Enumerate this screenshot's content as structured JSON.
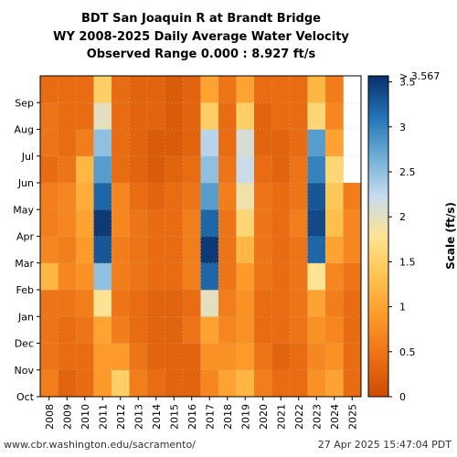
{
  "chart_data": {
    "type": "heatmap",
    "title_lines": [
      "BDT San Joaquin R at Brandt Bridge",
      "WY 2008-2025 Daily Average Water Velocity",
      "Observed Range 0.000 : 8.927 ft/s"
    ],
    "x_categories": [
      "2008",
      "2009",
      "2010",
      "2011",
      "2012",
      "2013",
      "2014",
      "2015",
      "2016",
      "2017",
      "2018",
      "2019",
      "2020",
      "2021",
      "2022",
      "2023",
      "2024",
      "2025"
    ],
    "y_categories": [
      "Oct",
      "Nov",
      "Dec",
      "Jan",
      "Feb",
      "Mar",
      "Apr",
      "May",
      "Jun",
      "Jul",
      "Aug",
      "Sep"
    ],
    "monthly_mean_velocity_ft_s": [
      [
        0.6,
        0.5,
        0.5,
        0.5,
        1.2,
        0.7,
        0.6,
        0.6,
        0.4,
        0.5,
        0.5,
        0.4
      ],
      [
        0.3,
        0.4,
        0.4,
        0.5,
        0.7,
        0.6,
        0.7,
        0.7,
        0.5,
        0.4,
        0.4,
        0.4
      ],
      [
        0.4,
        0.4,
        0.5,
        0.6,
        0.8,
        0.9,
        1.0,
        1.1,
        1.2,
        0.6,
        0.4,
        0.4
      ],
      [
        0.9,
        0.9,
        1.0,
        1.8,
        2.5,
        3.3,
        3.5,
        3.2,
        2.8,
        2.5,
        2.0,
        1.5
      ],
      [
        1.5,
        0.9,
        0.6,
        0.5,
        0.6,
        0.6,
        0.7,
        0.7,
        0.4,
        0.4,
        0.4,
        0.4
      ],
      [
        0.6,
        0.5,
        0.4,
        0.4,
        0.5,
        0.5,
        0.5,
        0.4,
        0.3,
        0.3,
        0.3,
        0.3
      ],
      [
        0.4,
        0.3,
        0.3,
        0.3,
        0.4,
        0.4,
        0.4,
        0.3,
        0.2,
        0.2,
        0.3,
        0.3
      ],
      [
        0.3,
        0.3,
        0.3,
        0.3,
        0.4,
        0.4,
        0.4,
        0.4,
        0.3,
        0.2,
        0.2,
        0.2
      ],
      [
        0.3,
        0.3,
        0.5,
        0.4,
        0.6,
        0.6,
        0.6,
        0.5,
        0.4,
        0.3,
        0.3,
        0.3
      ],
      [
        0.7,
        0.8,
        1.0,
        2.0,
        3.2,
        3.5,
        3.2,
        2.8,
        2.5,
        2.3,
        1.5,
        1.0
      ],
      [
        1.0,
        0.8,
        0.7,
        0.6,
        0.5,
        0.5,
        0.5,
        0.6,
        0.5,
        0.4,
        0.4,
        0.5
      ],
      [
        1.2,
        0.9,
        0.8,
        0.8,
        0.9,
        1.2,
        1.6,
        1.9,
        2.2,
        2.1,
        1.5,
        1.0
      ],
      [
        0.6,
        0.5,
        0.4,
        0.4,
        0.5,
        0.5,
        0.5,
        0.5,
        0.4,
        0.3,
        0.3,
        0.4
      ],
      [
        0.4,
        0.3,
        0.4,
        0.4,
        0.4,
        0.4,
        0.4,
        0.4,
        0.3,
        0.3,
        0.4,
        0.4
      ],
      [
        0.4,
        0.4,
        0.5,
        0.5,
        0.5,
        0.5,
        0.6,
        0.5,
        0.5,
        0.4,
        0.4,
        0.4
      ],
      [
        0.8,
        0.7,
        0.8,
        1.0,
        1.8,
        3.2,
        3.4,
        3.3,
        3.0,
        2.8,
        1.6,
        1.2
      ],
      [
        1.0,
        0.8,
        0.7,
        0.6,
        0.7,
        1.0,
        1.3,
        1.4,
        1.6,
        1.0,
        0.7,
        0.6
      ],
      [
        0.4,
        0.4,
        0.4,
        0.4,
        0.5,
        0.7,
        0.7,
        0.6
      ]
    ],
    "colorbar": {
      "min": 0,
      "max": 3.567,
      "ticks": [
        0,
        0.5,
        1,
        1.5,
        2,
        2.5,
        3,
        3.5
      ],
      "tick_labels": [
        "0",
        "0.5",
        "1",
        "1.5",
        "2",
        "2.5",
        "3",
        "3.5"
      ],
      "top_label": "> 3.567",
      "label": "Scale (ft/s)",
      "colors": [
        "#cc4c02",
        "#ec7014",
        "#fe9929",
        "#fec44f",
        "#fee391",
        "#c6dbef",
        "#6baed6",
        "#2171b5",
        "#08306b"
      ]
    },
    "grid": true
  },
  "footer": {
    "url": "www.cbr.washington.edu/sacramento/",
    "timestamp": "27 Apr 2025 15:47:04 PDT"
  }
}
